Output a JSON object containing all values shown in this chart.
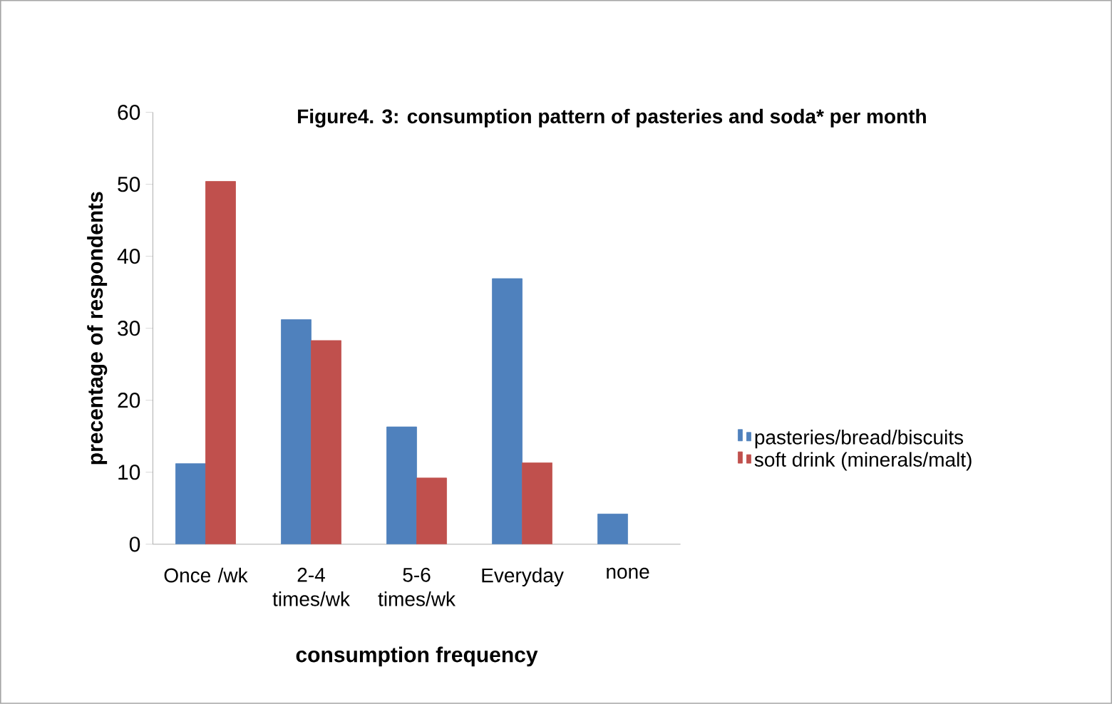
{
  "chart_data": {
    "type": "bar",
    "title": "Figure4. 3: consumption pattern of pasteries and soda* per month",
    "xlabel": "consumption frequency",
    "ylabel": "precentage of respondents",
    "categories": [
      "Once /wk",
      "2-4 times/wk",
      "5-6 times/wk",
      "Everyday",
      "none"
    ],
    "series": [
      {
        "name": "pasteries/bread/biscuits",
        "color": "#4f81bd",
        "values": [
          11.2,
          31.2,
          16.3,
          36.9,
          4.2
        ]
      },
      {
        "name": "soft drink (minerals/malt)",
        "color": "#c0504d",
        "values": [
          50.4,
          28.3,
          9.2,
          11.3,
          null
        ]
      }
    ],
    "ylim": [
      0,
      60
    ],
    "yticks": [
      0,
      10,
      20,
      30,
      40,
      50,
      60
    ],
    "legend": "right"
  }
}
